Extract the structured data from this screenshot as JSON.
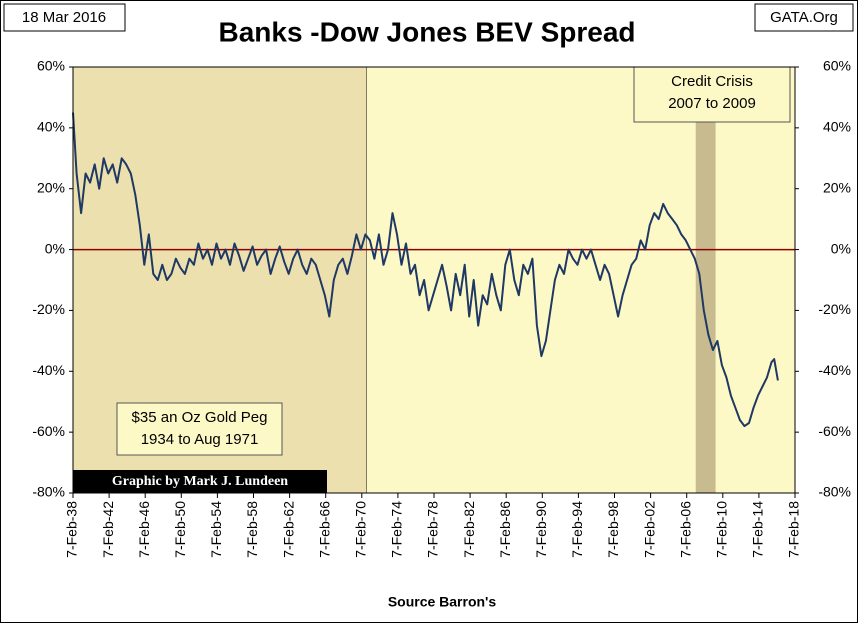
{
  "chart_data": {
    "type": "line",
    "title": "Banks -Dow Jones BEV Spread",
    "date_label": "18 Mar 2016",
    "source_label": "GATA.Org",
    "credit": "Graphic by Mark J. Lundeen",
    "x_label": "Source Barron's",
    "background_color": "#fdf9c6",
    "color": "#1f3864",
    "zero_line_color": "#8b0000",
    "shaded_regions": [
      {
        "start": 1938.1,
        "end": 1970.6,
        "color": "#ece1ae",
        "label_lines": [
          "$35 an Oz Gold Peg",
          "1934 to Aug 1971"
        ]
      },
      {
        "start": 2007.1,
        "end": 2009.3,
        "color": "#c9bb90",
        "label_lines": [
          "Credit Crisis",
          "2007 to 2009"
        ]
      }
    ],
    "x": [
      1938.1,
      1938.5,
      1939,
      1939.5,
      1940,
      1940.5,
      1941,
      1941.5,
      1942,
      1942.5,
      1943,
      1943.5,
      1944,
      1944.5,
      1945,
      1945.5,
      1946,
      1946.5,
      1947,
      1947.5,
      1948,
      1948.5,
      1949,
      1949.5,
      1950,
      1950.5,
      1951,
      1951.5,
      1952,
      1952.5,
      1953,
      1953.5,
      1954,
      1954.5,
      1955,
      1955.5,
      1956,
      1956.5,
      1957,
      1957.5,
      1958,
      1958.5,
      1959,
      1959.5,
      1960,
      1960.5,
      1961,
      1961.5,
      1962,
      1962.5,
      1963,
      1963.5,
      1964,
      1964.5,
      1965,
      1965.5,
      1966,
      1966.5,
      1967,
      1967.5,
      1968,
      1968.5,
      1969,
      1969.5,
      1970,
      1970.5,
      1971,
      1971.5,
      1972,
      1972.5,
      1973,
      1973.5,
      1974,
      1974.5,
      1975,
      1975.5,
      1976,
      1976.5,
      1977,
      1977.5,
      1978,
      1978.5,
      1979,
      1979.5,
      1980,
      1980.5,
      1981,
      1981.5,
      1982,
      1982.5,
      1983,
      1983.5,
      1984,
      1984.5,
      1985,
      1985.5,
      1986,
      1986.5,
      1987,
      1987.5,
      1988,
      1988.5,
      1989,
      1989.5,
      1990,
      1990.5,
      1991,
      1991.5,
      1992,
      1992.5,
      1993,
      1993.5,
      1994,
      1994.5,
      1995,
      1995.5,
      1996,
      1996.5,
      1997,
      1997.5,
      1998,
      1998.5,
      1999,
      1999.5,
      2000,
      2000.5,
      2001,
      2001.5,
      2002,
      2002.5,
      2003,
      2003.5,
      2004,
      2004.5,
      2005,
      2005.5,
      2006,
      2006.5,
      2007,
      2007.5,
      2008,
      2008.5,
      2009,
      2009.5,
      2010,
      2010.5,
      2011,
      2011.5,
      2012,
      2012.5,
      2013,
      2013.5,
      2014,
      2014.5,
      2015,
      2015.5,
      2015.8,
      2016.2
    ],
    "values": [
      45,
      25,
      12,
      25,
      22,
      28,
      20,
      30,
      25,
      28,
      22,
      30,
      28,
      25,
      18,
      8,
      -5,
      5,
      -8,
      -10,
      -5,
      -10,
      -8,
      -3,
      -6,
      -8,
      -3,
      -5,
      2,
      -3,
      0,
      -5,
      2,
      -3,
      0,
      -5,
      2,
      -2,
      -7,
      -3,
      1,
      -5,
      -2,
      0,
      -8,
      -3,
      1,
      -4,
      -8,
      -3,
      0,
      -5,
      -8,
      -3,
      -5,
      -10,
      -15,
      -22,
      -10,
      -5,
      -3,
      -8,
      -2,
      5,
      0,
      5,
      3,
      -3,
      5,
      -5,
      0,
      12,
      5,
      -5,
      2,
      -8,
      -5,
      -15,
      -10,
      -20,
      -15,
      -10,
      -5,
      -12,
      -20,
      -8,
      -15,
      -5,
      -22,
      -10,
      -25,
      -15,
      -18,
      -8,
      -15,
      -20,
      -5,
      0,
      -10,
      -15,
      -5,
      -8,
      -3,
      -25,
      -35,
      -30,
      -20,
      -10,
      -5,
      -8,
      0,
      -3,
      -5,
      0,
      -3,
      0,
      -5,
      -10,
      -5,
      -8,
      -15,
      -22,
      -15,
      -10,
      -5,
      -3,
      3,
      0,
      8,
      12,
      10,
      15,
      12,
      10,
      8,
      5,
      3,
      0,
      -3,
      -8,
      -20,
      -28,
      -33,
      -30,
      -38,
      -42,
      -48,
      -52,
      -56,
      -58,
      -57,
      -52,
      -48,
      -45,
      -42,
      -37,
      -36,
      -43
    ],
    "xlim": [
      1938.1,
      2018.1
    ],
    "xticks": [
      {
        "value": 1938.1,
        "label": "7-Feb-38"
      },
      {
        "value": 1942.1,
        "label": "7-Feb-42"
      },
      {
        "value": 1946.1,
        "label": "7-Feb-46"
      },
      {
        "value": 1950.1,
        "label": "7-Feb-50"
      },
      {
        "value": 1954.1,
        "label": "7-Feb-54"
      },
      {
        "value": 1958.1,
        "label": "7-Feb-58"
      },
      {
        "value": 1962.1,
        "label": "7-Feb-62"
      },
      {
        "value": 1966.1,
        "label": "7-Feb-66"
      },
      {
        "value": 1970.1,
        "label": "7-Feb-70"
      },
      {
        "value": 1974.1,
        "label": "7-Feb-74"
      },
      {
        "value": 1978.1,
        "label": "7-Feb-78"
      },
      {
        "value": 1982.1,
        "label": "7-Feb-82"
      },
      {
        "value": 1986.1,
        "label": "7-Feb-86"
      },
      {
        "value": 1990.1,
        "label": "7-Feb-90"
      },
      {
        "value": 1994.1,
        "label": "7-Feb-94"
      },
      {
        "value": 1998.1,
        "label": "7-Feb-98"
      },
      {
        "value": 2002.1,
        "label": "7-Feb-02"
      },
      {
        "value": 2006.1,
        "label": "7-Feb-06"
      },
      {
        "value": 2010.1,
        "label": "7-Feb-10"
      },
      {
        "value": 2014.1,
        "label": "7-Feb-14"
      },
      {
        "value": 2018.1,
        "label": "7-Feb-18"
      }
    ],
    "ylim": [
      -80,
      60
    ],
    "yticks": [
      {
        "value": 60,
        "label": "60%"
      },
      {
        "value": 40,
        "label": "40%"
      },
      {
        "value": 20,
        "label": "20%"
      },
      {
        "value": 0,
        "label": "0%"
      },
      {
        "value": -20,
        "label": "-20%"
      },
      {
        "value": -40,
        "label": "-40%"
      },
      {
        "value": -60,
        "label": "-60%"
      },
      {
        "value": -80,
        "label": "-80%"
      }
    ],
    "y2lim": [
      -80,
      60
    ],
    "y2ticks": [
      {
        "value": 60,
        "label": "60%"
      },
      {
        "value": 40,
        "label": "40%"
      },
      {
        "value": 20,
        "label": "20%"
      },
      {
        "value": 0,
        "label": "0%"
      },
      {
        "value": -20,
        "label": "-20%"
      },
      {
        "value": -40,
        "label": "-40%"
      },
      {
        "value": -60,
        "label": "-60%"
      },
      {
        "value": -80,
        "label": "-80%"
      }
    ]
  }
}
